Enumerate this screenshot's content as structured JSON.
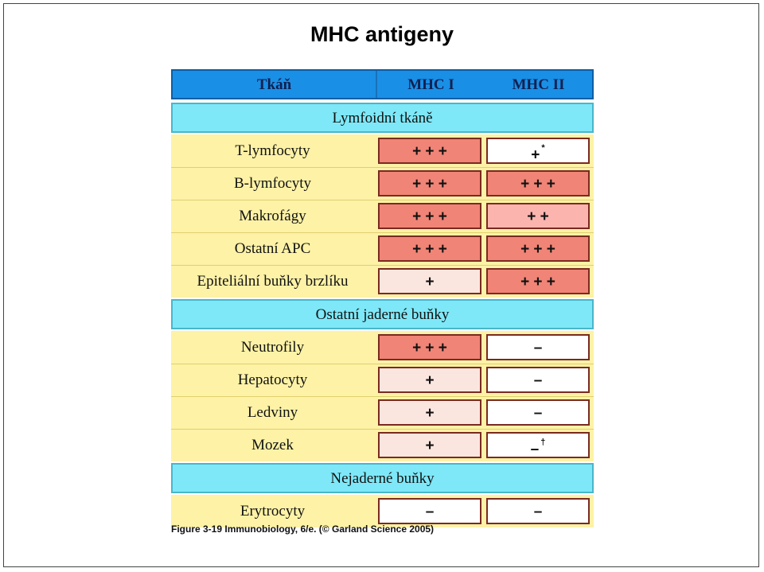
{
  "title": "MHC antigeny",
  "header": {
    "tissue": "Tkáň",
    "mhc1": "MHC I",
    "mhc2": "MHC II"
  },
  "colors": {
    "strong": "#f08476",
    "medium": "#fbb5ae",
    "weak": "#fbe6df",
    "none": "#ffffff",
    "row_bg": "#fdf2a6",
    "section_bg": "#7ee8f8",
    "header_bg": "#1a8fe6"
  },
  "sections": [
    {
      "title": "Lymfoidní tkáně",
      "rows": [
        {
          "label": "T-lymfocyty",
          "mhc1": "+ + +",
          "mhc1_level": "strong",
          "mhc2": "+",
          "mhc2_sup": "*",
          "mhc2_level": "none"
        },
        {
          "label": "B-lymfocyty",
          "mhc1": "+ + +",
          "mhc1_level": "strong",
          "mhc2": "+ + +",
          "mhc2_sup": "",
          "mhc2_level": "strong"
        },
        {
          "label": "Makrofágy",
          "mhc1": "+ + +",
          "mhc1_level": "strong",
          "mhc2": "+ +",
          "mhc2_sup": "",
          "mhc2_level": "medium"
        },
        {
          "label": "Ostatní APC",
          "mhc1": "+ + +",
          "mhc1_level": "strong",
          "mhc2": "+ + +",
          "mhc2_sup": "",
          "mhc2_level": "strong"
        },
        {
          "label": "Epiteliální buňky brzlíku",
          "mhc1": "+",
          "mhc1_level": "weak",
          "mhc2": "+ + +",
          "mhc2_sup": "",
          "mhc2_level": "strong"
        }
      ]
    },
    {
      "title": "Ostatní jaderné buňky",
      "rows": [
        {
          "label": "Neutrofily",
          "mhc1": "+ + +",
          "mhc1_level": "strong",
          "mhc2": "–",
          "mhc2_sup": "",
          "mhc2_level": "none"
        },
        {
          "label": "Hepatocyty",
          "mhc1": "+",
          "mhc1_level": "weak",
          "mhc2": "–",
          "mhc2_sup": "",
          "mhc2_level": "none"
        },
        {
          "label": "Ledviny",
          "mhc1": "+",
          "mhc1_level": "weak",
          "mhc2": "–",
          "mhc2_sup": "",
          "mhc2_level": "none"
        },
        {
          "label": "Mozek",
          "mhc1": "+",
          "mhc1_level": "weak",
          "mhc2": "–",
          "mhc2_sup": "†",
          "mhc2_level": "none"
        }
      ]
    },
    {
      "title": "Nejaderné buňky",
      "rows": [
        {
          "label": "Erytrocyty",
          "mhc1": "–",
          "mhc1_level": "none",
          "mhc2": "–",
          "mhc2_sup": "",
          "mhc2_level": "none"
        }
      ]
    }
  ],
  "caption": "Figure 3-19  Immunobiology, 6/e. (© Garland Science 2005)"
}
